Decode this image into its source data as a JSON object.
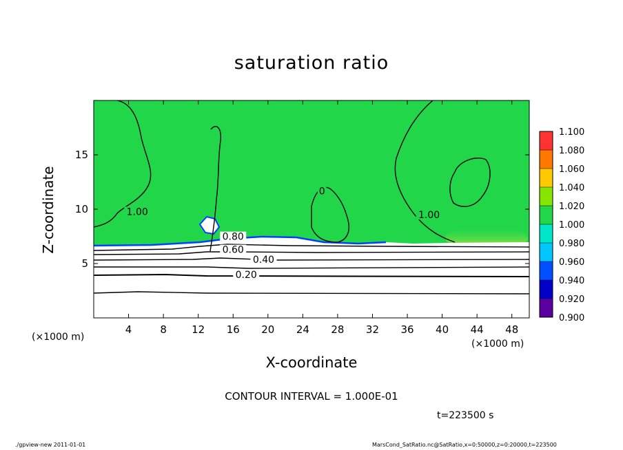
{
  "chart_data": {
    "type": "heatmap",
    "title": "saturation ratio",
    "xlabel": "X-coordinate",
    "ylabel": "Z-coordinate",
    "x_unit_label": "(×1000 m)",
    "xlim": [
      0,
      50
    ],
    "ylim": [
      0,
      20
    ],
    "x_ticks": [
      4,
      8,
      12,
      16,
      20,
      24,
      28,
      32,
      36,
      40,
      44,
      48
    ],
    "y_ticks": [
      5,
      10,
      15
    ],
    "colorbar": {
      "levels": [
        0.9,
        0.92,
        0.94,
        0.96,
        0.98,
        1.0,
        1.02,
        1.04,
        1.06,
        1.08,
        1.1
      ],
      "labels": [
        "0.900",
        "0.920",
        "0.940",
        "0.960",
        "0.980",
        "1.000",
        "1.020",
        "1.040",
        "1.060",
        "1.080",
        "1.100"
      ],
      "colors": [
        "#5a00a0",
        "#0000c8",
        "#0050ff",
        "#00c8ff",
        "#00e6c8",
        "#22d64a",
        "#86e600",
        "#ffc800",
        "#ff7800",
        "#ff3232",
        "#ff9696"
      ]
    },
    "contour_labels": [
      {
        "text": "1.00",
        "x": 5.0,
        "z": 9.6
      },
      {
        "text": "1.00",
        "x": 38.5,
        "z": 9.3
      },
      {
        "text": "0.80",
        "x": 16.0,
        "z": 7.3
      },
      {
        "text": "0.60",
        "x": 16.0,
        "z": 6.1
      },
      {
        "text": "0.40",
        "x": 19.5,
        "z": 5.2
      },
      {
        "text": "0.20",
        "x": 17.5,
        "z": 3.8
      },
      {
        "text": "0",
        "x": 26.2,
        "z": 11.5
      }
    ],
    "contour_interval_text": "CONTOUR INTERVAL = 1.000E-01",
    "time_text": "t=223500 s"
  },
  "footer": {
    "left": "./gpview-new  2011-01-01",
    "right": "MarsCond_SatRatio.nc@SatRatio,x=0:50000,z=0:20000,t=223500"
  },
  "colors": {
    "background_green": "#22d64a",
    "lower_white": "#ffffff",
    "contour_line": "#000000"
  }
}
